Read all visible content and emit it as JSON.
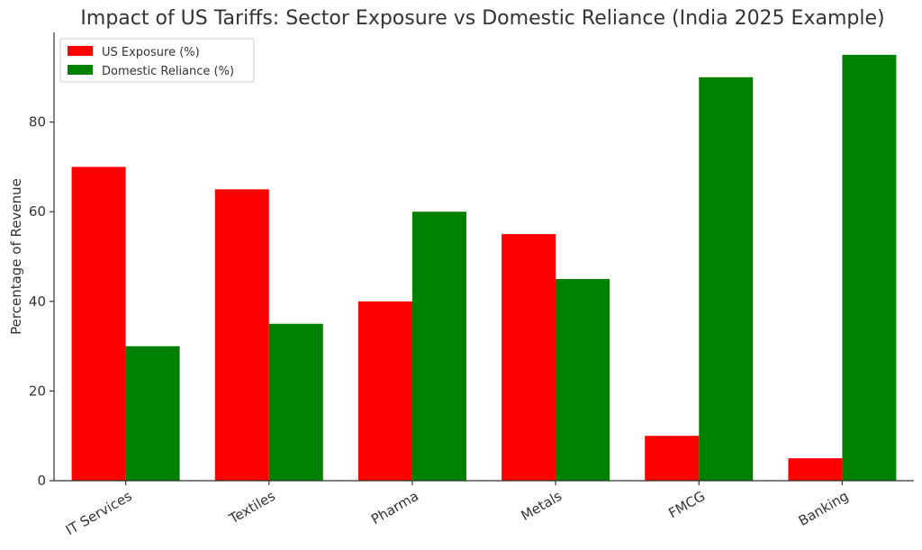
{
  "chart_data": {
    "type": "bar",
    "title": "Impact of US Tariffs: Sector Exposure vs Domestic Reliance (India 2025 Example)",
    "xlabel": "",
    "ylabel": "Percentage of Revenue",
    "categories": [
      "IT Services",
      "Textiles",
      "Pharma",
      "Metals",
      "FMCG",
      "Banking"
    ],
    "series": [
      {
        "name": "US Exposure (%)",
        "color": "#ff0000",
        "values": [
          70,
          65,
          40,
          55,
          10,
          5
        ]
      },
      {
        "name": "Domestic Reliance (%)",
        "color": "#008000",
        "values": [
          30,
          35,
          60,
          45,
          90,
          95
        ]
      }
    ],
    "ylim": [
      0,
      100
    ],
    "yticks": [
      0,
      20,
      40,
      60,
      80
    ],
    "grid": false,
    "legend": "top-left"
  }
}
